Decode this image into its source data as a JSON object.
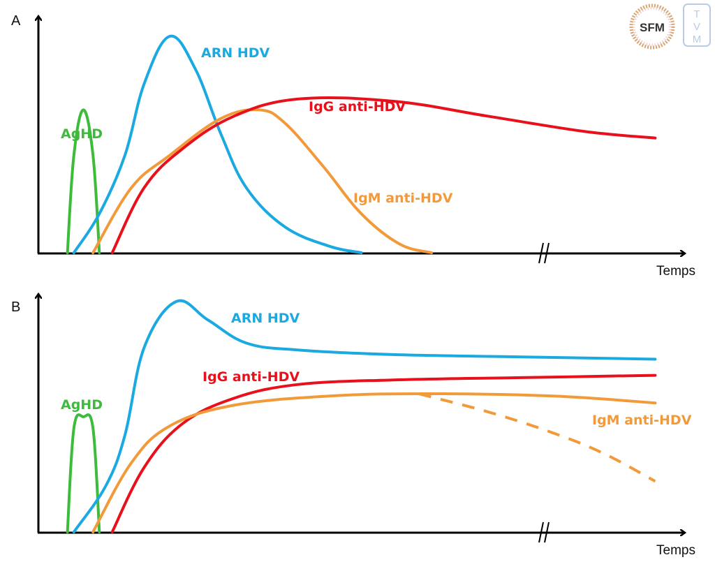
{
  "chart_data": [
    {
      "type": "line",
      "panel": "A",
      "title": "A",
      "xlabel": "Temps",
      "ylabel": "",
      "axis_break": true,
      "grid": false,
      "xlim": [
        0,
        100
      ],
      "ylim": [
        0,
        100
      ],
      "series": [
        {
          "name": "AgHD",
          "color": "#3dbb3a",
          "style": "solid",
          "points": [
            [
              4,
              0
            ],
            [
              5,
              45
            ],
            [
              6.5,
              66
            ],
            [
              8,
              45
            ],
            [
              9,
              0
            ]
          ]
        },
        {
          "name": "ARN HDV",
          "color": "#1aa9e0",
          "style": "solid",
          "points": [
            [
              5,
              0
            ],
            [
              9,
              18
            ],
            [
              13,
              45
            ],
            [
              16,
              78
            ],
            [
              20,
              100
            ],
            [
              24,
              85
            ],
            [
              28,
              55
            ],
            [
              32,
              30
            ],
            [
              38,
              12
            ],
            [
              45,
              3
            ],
            [
              50,
              0
            ]
          ]
        },
        {
          "name": "IgM anti-HDV",
          "color": "#f29a3a",
          "style": "solid",
          "points": [
            [
              8,
              0
            ],
            [
              14,
              30
            ],
            [
              20,
              45
            ],
            [
              28,
              62
            ],
            [
              34,
              66
            ],
            [
              38,
              60
            ],
            [
              44,
              40
            ],
            [
              50,
              18
            ],
            [
              56,
              4
            ],
            [
              61,
              0
            ]
          ]
        },
        {
          "name": "IgG anti-HDV",
          "color": "#e8111b",
          "style": "solid",
          "points": [
            [
              11,
              0
            ],
            [
              16,
              30
            ],
            [
              22,
              48
            ],
            [
              30,
              63
            ],
            [
              40,
              71
            ],
            [
              55,
              70
            ],
            [
              70,
              63
            ],
            [
              85,
              56
            ],
            [
              96,
              53
            ]
          ]
        }
      ],
      "annotations": [
        {
          "text": "AgHD",
          "series": "AgHD"
        },
        {
          "text": "ARN HDV",
          "series": "ARN HDV"
        },
        {
          "text": "IgG anti-HDV",
          "series": "IgG anti-HDV"
        },
        {
          "text": "IgM anti-HDV",
          "series": "IgM anti-HDV"
        }
      ]
    },
    {
      "type": "line",
      "panel": "B",
      "title": "B",
      "xlabel": "Temps",
      "ylabel": "",
      "axis_break": true,
      "grid": false,
      "xlim": [
        0,
        100
      ],
      "ylim": [
        0,
        100
      ],
      "series": [
        {
          "name": "AgHD",
          "color": "#3dbb3a",
          "style": "solid",
          "points": [
            [
              4,
              0
            ],
            [
              5,
              45
            ],
            [
              6.5,
              50
            ],
            [
              8,
              45
            ],
            [
              9,
              0
            ]
          ]
        },
        {
          "name": "ARN HDV",
          "color": "#1aa9e0",
          "style": "solid",
          "points": [
            [
              5,
              0
            ],
            [
              10,
              20
            ],
            [
              13,
              42
            ],
            [
              16,
              80
            ],
            [
              21,
              100
            ],
            [
              26,
              92
            ],
            [
              32,
              82
            ],
            [
              40,
              79
            ],
            [
              55,
              77
            ],
            [
              75,
              76
            ],
            [
              96,
              75
            ]
          ]
        },
        {
          "name": "IgG anti-HDV",
          "color": "#e8111b",
          "style": "solid",
          "points": [
            [
              11,
              0
            ],
            [
              16,
              28
            ],
            [
              22,
              47
            ],
            [
              30,
              58
            ],
            [
              40,
              64
            ],
            [
              55,
              66
            ],
            [
              75,
              67
            ],
            [
              96,
              68
            ]
          ]
        },
        {
          "name": "IgM anti-HDV",
          "color": "#f29a3a",
          "style": "solid",
          "points": [
            [
              8,
              0
            ],
            [
              14,
              30
            ],
            [
              20,
              46
            ],
            [
              30,
              55
            ],
            [
              45,
              59
            ],
            [
              60,
              60
            ],
            [
              80,
              59
            ],
            [
              96,
              56
            ]
          ]
        },
        {
          "name": "IgM anti-HDV (decline)",
          "color": "#f29a3a",
          "style": "dashed",
          "points": [
            [
              59,
              60
            ],
            [
              70,
              52
            ],
            [
              80,
              43
            ],
            [
              88,
              34
            ],
            [
              96,
              22
            ]
          ]
        }
      ],
      "annotations": [
        {
          "text": "AgHD",
          "series": "AgHD"
        },
        {
          "text": "ARN HDV",
          "series": "ARN HDV"
        },
        {
          "text": "IgG anti-HDV",
          "series": "IgG anti-HDV"
        },
        {
          "text": "IgM anti-HDV",
          "series": "IgM anti-HDV"
        }
      ]
    }
  ],
  "labels": {
    "panel_a": "A",
    "panel_b": "B",
    "x_axis": "Temps",
    "aghd": "AgHD",
    "arn": "ARN HDV",
    "igg": "IgG anti-HDV",
    "igm": "IgM anti-HDV",
    "break_mark": "//"
  },
  "logos": {
    "sfm": "SFM",
    "tvm": [
      "T",
      "V",
      "M"
    ]
  },
  "colors": {
    "aghd": "#3dbb3a",
    "arn": "#1aa9e0",
    "igg": "#e8111b",
    "igm": "#f29a3a",
    "axis": "#000000",
    "tvm": "#b8cce4"
  }
}
